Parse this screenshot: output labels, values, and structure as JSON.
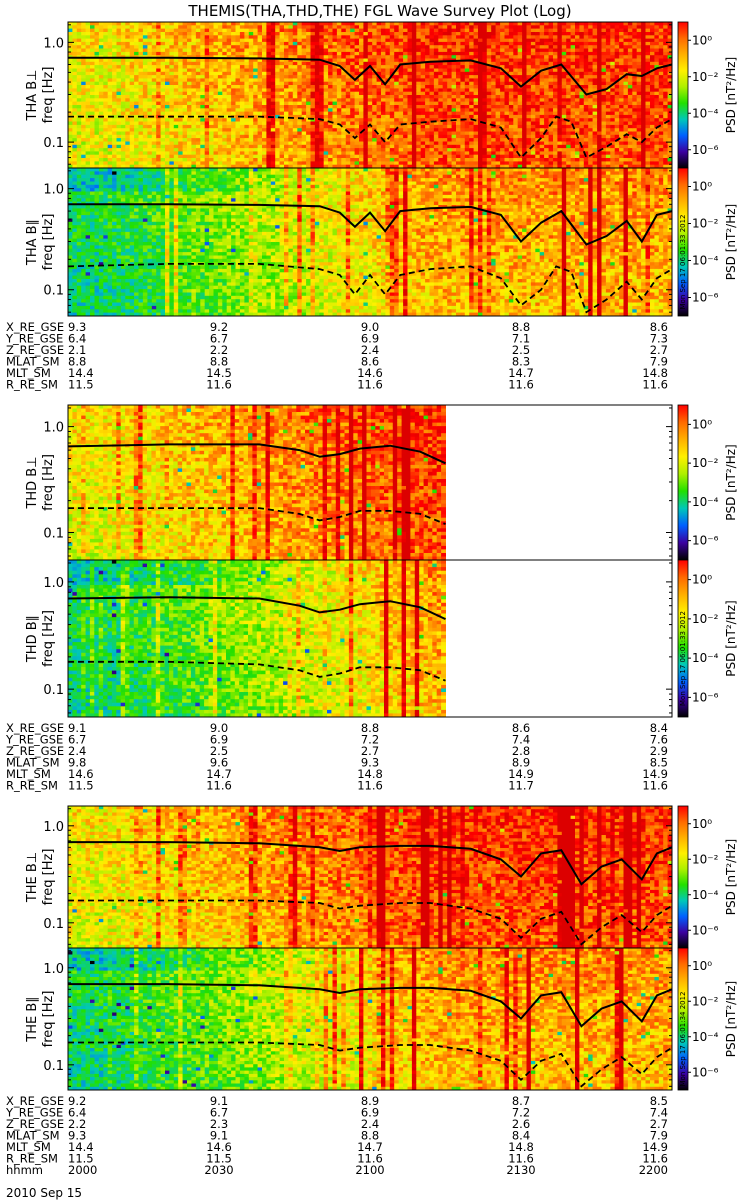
{
  "title": "THEMIS(THA,THD,THE) FGL Wave Survey Plot (Log)",
  "date_label": "2010 Sep 15",
  "colorbar": {
    "label": "PSD [nT²/Hz]",
    "ticks": [
      "10⁰",
      "10⁻²",
      "10⁻⁴",
      "10⁻⁶"
    ],
    "colors": [
      "#ff0000",
      "#ff6a00",
      "#ffb000",
      "#fff000",
      "#aef000",
      "#22e000",
      "#00c8b8",
      "#0060ff",
      "#3b00a0",
      "#000000"
    ]
  },
  "timestamps": {
    "tha": "Mon Sep 17 06:01:33 2012",
    "thd": "Mon Sep 17 06:01:33 2012",
    "the": "Mon Sep 17 06:01:34 2012"
  },
  "ephemeris_labels": [
    "X_RE_GSE",
    "Y_RE_GSE",
    "Z_RE_GSE",
    "MLAT_SM",
    "MLT_SM",
    "R_RE_SM"
  ],
  "ephem": {
    "tha": [
      [
        "9.3",
        "9.2",
        "9.0",
        "8.8",
        "8.6"
      ],
      [
        "6.4",
        "6.7",
        "6.9",
        "7.1",
        "7.3"
      ],
      [
        "2.1",
        "2.2",
        "2.4",
        "2.5",
        "2.7"
      ],
      [
        "8.8",
        "8.8",
        "8.6",
        "8.3",
        "7.9"
      ],
      [
        "14.4",
        "14.5",
        "14.6",
        "14.7",
        "14.8"
      ],
      [
        "11.5",
        "11.6",
        "11.6",
        "11.6",
        "11.6"
      ]
    ],
    "thd": [
      [
        "9.1",
        "9.0",
        "8.8",
        "8.6",
        "8.4"
      ],
      [
        "6.7",
        "6.9",
        "7.2",
        "7.4",
        "7.6"
      ],
      [
        "2.4",
        "2.5",
        "2.7",
        "2.8",
        "2.9"
      ],
      [
        "9.8",
        "9.6",
        "9.3",
        "8.9",
        "8.5"
      ],
      [
        "14.6",
        "14.7",
        "14.8",
        "14.9",
        "14.9"
      ],
      [
        "11.5",
        "11.6",
        "11.6",
        "11.7",
        "11.6"
      ]
    ],
    "the": [
      [
        "9.2",
        "9.1",
        "8.9",
        "8.7",
        "8.5"
      ],
      [
        "6.4",
        "6.7",
        "6.9",
        "7.2",
        "7.4"
      ],
      [
        "2.2",
        "2.3",
        "2.4",
        "2.6",
        "2.7"
      ],
      [
        "9.3",
        "9.1",
        "8.8",
        "8.4",
        "7.9"
      ],
      [
        "14.4",
        "14.6",
        "14.7",
        "14.8",
        "14.9"
      ],
      [
        "11.5",
        "11.5",
        "11.6",
        "11.6",
        "11.6"
      ]
    ]
  },
  "hhmm_label": "hhmm",
  "chart_data": {
    "type": "heatmap",
    "title": "THEMIS(THA,THD,THE) FGL Wave Survey Plot (Log)",
    "x_axis": {
      "label": "hhmm",
      "ticks": [
        "2000",
        "2030",
        "2100",
        "2130",
        "2200"
      ],
      "range": [
        0,
        120
      ]
    },
    "y_axis": {
      "label": "freq [Hz]",
      "scale": "log",
      "range": [
        0.055,
        1.6
      ],
      "ticks": [
        "1.0",
        "0.1"
      ],
      "tick_values": [
        1.0,
        0.1
      ]
    },
    "colorbar_range_log10": [
      -7,
      1
    ],
    "panels": [
      {
        "id": "tha-bperp",
        "ylabel": "THA B⊥",
        "data_end": 120,
        "ridge": "perp",
        "fce_line": [
          [
            0,
            0.7
          ],
          [
            20,
            0.7
          ],
          [
            38,
            0.69
          ],
          [
            50,
            0.67
          ],
          [
            54,
            0.58
          ],
          [
            57,
            0.42
          ],
          [
            60,
            0.58
          ],
          [
            63,
            0.38
          ],
          [
            66,
            0.6
          ],
          [
            72,
            0.64
          ],
          [
            80,
            0.66
          ],
          [
            86,
            0.55
          ],
          [
            90,
            0.36
          ],
          [
            94,
            0.52
          ],
          [
            98,
            0.6
          ],
          [
            103,
            0.3
          ],
          [
            107,
            0.34
          ],
          [
            111,
            0.48
          ],
          [
            114,
            0.46
          ],
          [
            117,
            0.55
          ],
          [
            120,
            0.6
          ]
        ],
        "flh_line": [
          [
            0,
            0.18
          ],
          [
            20,
            0.18
          ],
          [
            38,
            0.18
          ],
          [
            50,
            0.17
          ],
          [
            54,
            0.15
          ],
          [
            57,
            0.11
          ],
          [
            60,
            0.15
          ],
          [
            63,
            0.1
          ],
          [
            66,
            0.15
          ],
          [
            72,
            0.16
          ],
          [
            80,
            0.17
          ],
          [
            86,
            0.14
          ],
          [
            90,
            0.07
          ],
          [
            94,
            0.11
          ],
          [
            97,
            0.18
          ],
          [
            100,
            0.16
          ],
          [
            103,
            0.07
          ],
          [
            107,
            0.09
          ],
          [
            111,
            0.12
          ],
          [
            114,
            0.1
          ],
          [
            117,
            0.14
          ],
          [
            120,
            0.17
          ]
        ]
      },
      {
        "id": "tha-bpar",
        "ylabel": "THA B∥",
        "data_end": 120,
        "ridge": "par",
        "fce_line": [
          [
            0,
            0.7
          ],
          [
            20,
            0.7
          ],
          [
            38,
            0.69
          ],
          [
            50,
            0.67
          ],
          [
            54,
            0.58
          ],
          [
            57,
            0.42
          ],
          [
            60,
            0.58
          ],
          [
            63,
            0.38
          ],
          [
            66,
            0.6
          ],
          [
            72,
            0.64
          ],
          [
            80,
            0.66
          ],
          [
            86,
            0.55
          ],
          [
            90,
            0.3
          ],
          [
            94,
            0.46
          ],
          [
            98,
            0.6
          ],
          [
            103,
            0.28
          ],
          [
            107,
            0.34
          ],
          [
            111,
            0.48
          ],
          [
            114,
            0.3
          ],
          [
            117,
            0.55
          ],
          [
            120,
            0.6
          ]
        ],
        "flh_line": [
          [
            0,
            0.17
          ],
          [
            20,
            0.18
          ],
          [
            38,
            0.18
          ],
          [
            50,
            0.16
          ],
          [
            54,
            0.14
          ],
          [
            57,
            0.09
          ],
          [
            60,
            0.14
          ],
          [
            63,
            0.09
          ],
          [
            66,
            0.14
          ],
          [
            72,
            0.16
          ],
          [
            80,
            0.17
          ],
          [
            86,
            0.13
          ],
          [
            90,
            0.07
          ],
          [
            94,
            0.1
          ],
          [
            97,
            0.17
          ],
          [
            100,
            0.15
          ],
          [
            103,
            0.06
          ],
          [
            107,
            0.08
          ],
          [
            111,
            0.12
          ],
          [
            114,
            0.08
          ],
          [
            117,
            0.13
          ],
          [
            120,
            0.16
          ]
        ]
      },
      {
        "id": "thd-bperp",
        "ylabel": "THD B⊥",
        "data_end": 75,
        "ridge": "perp",
        "fce_line": [
          [
            0,
            0.65
          ],
          [
            20,
            0.68
          ],
          [
            38,
            0.68
          ],
          [
            46,
            0.6
          ],
          [
            50,
            0.52
          ],
          [
            54,
            0.55
          ],
          [
            58,
            0.62
          ],
          [
            64,
            0.66
          ],
          [
            70,
            0.58
          ],
          [
            75,
            0.45
          ]
        ],
        "flh_line": [
          [
            0,
            0.17
          ],
          [
            20,
            0.17
          ],
          [
            38,
            0.17
          ],
          [
            46,
            0.15
          ],
          [
            50,
            0.13
          ],
          [
            54,
            0.14
          ],
          [
            58,
            0.16
          ],
          [
            64,
            0.16
          ],
          [
            70,
            0.15
          ],
          [
            75,
            0.12
          ]
        ]
      },
      {
        "id": "thd-bpar",
        "ylabel": "THD B∥",
        "data_end": 75,
        "ridge": "par",
        "fce_line": [
          [
            0,
            0.7
          ],
          [
            20,
            0.72
          ],
          [
            38,
            0.7
          ],
          [
            46,
            0.6
          ],
          [
            50,
            0.52
          ],
          [
            54,
            0.55
          ],
          [
            58,
            0.62
          ],
          [
            64,
            0.66
          ],
          [
            70,
            0.58
          ],
          [
            75,
            0.45
          ]
        ],
        "flh_line": [
          [
            0,
            0.18
          ],
          [
            20,
            0.18
          ],
          [
            38,
            0.17
          ],
          [
            46,
            0.15
          ],
          [
            50,
            0.13
          ],
          [
            54,
            0.14
          ],
          [
            58,
            0.16
          ],
          [
            64,
            0.16
          ],
          [
            70,
            0.15
          ],
          [
            75,
            0.12
          ]
        ]
      },
      {
        "id": "the-bperp",
        "ylabel": "THE B⊥",
        "data_end": 120,
        "ridge": "perp",
        "fce_line": [
          [
            0,
            0.68
          ],
          [
            20,
            0.68
          ],
          [
            38,
            0.66
          ],
          [
            50,
            0.6
          ],
          [
            54,
            0.55
          ],
          [
            58,
            0.6
          ],
          [
            66,
            0.62
          ],
          [
            72,
            0.62
          ],
          [
            80,
            0.58
          ],
          [
            86,
            0.45
          ],
          [
            90,
            0.3
          ],
          [
            94,
            0.52
          ],
          [
            98,
            0.56
          ],
          [
            102,
            0.25
          ],
          [
            106,
            0.38
          ],
          [
            110,
            0.45
          ],
          [
            114,
            0.28
          ],
          [
            117,
            0.52
          ],
          [
            120,
            0.6
          ]
        ],
        "flh_line": [
          [
            0,
            0.17
          ],
          [
            20,
            0.17
          ],
          [
            38,
            0.17
          ],
          [
            50,
            0.16
          ],
          [
            54,
            0.14
          ],
          [
            58,
            0.15
          ],
          [
            66,
            0.16
          ],
          [
            72,
            0.16
          ],
          [
            80,
            0.14
          ],
          [
            86,
            0.11
          ],
          [
            90,
            0.07
          ],
          [
            94,
            0.11
          ],
          [
            98,
            0.13
          ],
          [
            102,
            0.06
          ],
          [
            106,
            0.09
          ],
          [
            110,
            0.12
          ],
          [
            114,
            0.08
          ],
          [
            117,
            0.12
          ],
          [
            120,
            0.15
          ]
        ]
      },
      {
        "id": "the-bpar",
        "ylabel": "THE B∥",
        "data_end": 120,
        "ridge": "par",
        "fce_line": [
          [
            0,
            0.68
          ],
          [
            20,
            0.68
          ],
          [
            38,
            0.66
          ],
          [
            50,
            0.6
          ],
          [
            54,
            0.55
          ],
          [
            58,
            0.6
          ],
          [
            66,
            0.62
          ],
          [
            72,
            0.62
          ],
          [
            80,
            0.58
          ],
          [
            86,
            0.45
          ],
          [
            90,
            0.3
          ],
          [
            94,
            0.52
          ],
          [
            98,
            0.56
          ],
          [
            102,
            0.25
          ],
          [
            106,
            0.38
          ],
          [
            110,
            0.45
          ],
          [
            114,
            0.28
          ],
          [
            117,
            0.52
          ],
          [
            120,
            0.6
          ]
        ],
        "flh_line": [
          [
            0,
            0.17
          ],
          [
            20,
            0.17
          ],
          [
            38,
            0.17
          ],
          [
            50,
            0.16
          ],
          [
            54,
            0.14
          ],
          [
            58,
            0.15
          ],
          [
            66,
            0.16
          ],
          [
            72,
            0.16
          ],
          [
            80,
            0.14
          ],
          [
            86,
            0.11
          ],
          [
            90,
            0.07
          ],
          [
            94,
            0.11
          ],
          [
            98,
            0.13
          ],
          [
            102,
            0.06
          ],
          [
            106,
            0.09
          ],
          [
            110,
            0.12
          ],
          [
            114,
            0.08
          ],
          [
            117,
            0.12
          ],
          [
            120,
            0.15
          ]
        ]
      }
    ]
  }
}
